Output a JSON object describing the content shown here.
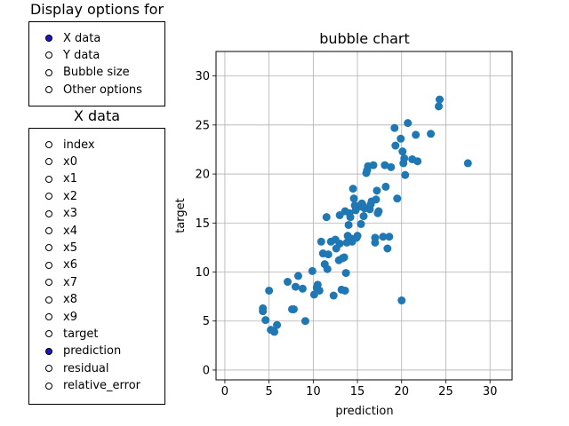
{
  "panels": {
    "display_title": "Display options for",
    "display_options": [
      {
        "label": "X data",
        "selected": true
      },
      {
        "label": "Y data",
        "selected": false
      },
      {
        "label": "Bubble size",
        "selected": false
      },
      {
        "label": "Other options",
        "selected": false
      }
    ],
    "xdata_title": "X data",
    "xdata_options": [
      {
        "label": "index",
        "selected": false
      },
      {
        "label": "x0",
        "selected": false
      },
      {
        "label": "x1",
        "selected": false
      },
      {
        "label": "x2",
        "selected": false
      },
      {
        "label": "x3",
        "selected": false
      },
      {
        "label": "x4",
        "selected": false
      },
      {
        "label": "x5",
        "selected": false
      },
      {
        "label": "x6",
        "selected": false
      },
      {
        "label": "x7",
        "selected": false
      },
      {
        "label": "x8",
        "selected": false
      },
      {
        "label": "x9",
        "selected": false
      },
      {
        "label": "target",
        "selected": false
      },
      {
        "label": "prediction",
        "selected": true
      },
      {
        "label": "residual",
        "selected": false
      },
      {
        "label": "relative_error",
        "selected": false
      }
    ],
    "selected_color": "#1a17c8"
  },
  "chart_data": {
    "type": "scatter",
    "title": "bubble chart",
    "xlabel": "prediction",
    "ylabel": "target",
    "xlim": [
      -1,
      32.5
    ],
    "ylim": [
      -1,
      32.5
    ],
    "xticks": [
      0,
      5,
      10,
      15,
      20,
      25,
      30
    ],
    "yticks": [
      0,
      5,
      10,
      15,
      20,
      25,
      30
    ],
    "grid": true,
    "color": "#1f77b4",
    "points": [
      [
        4.3,
        6.3
      ],
      [
        4.3,
        6.0
      ],
      [
        4.6,
        5.1
      ],
      [
        5.0,
        8.1
      ],
      [
        5.2,
        4.1
      ],
      [
        5.6,
        3.9
      ],
      [
        5.9,
        4.6
      ],
      [
        7.1,
        9.0
      ],
      [
        7.6,
        6.2
      ],
      [
        7.8,
        6.2
      ],
      [
        8.0,
        8.5
      ],
      [
        8.3,
        9.6
      ],
      [
        8.8,
        8.3
      ],
      [
        9.1,
        5.0
      ],
      [
        9.9,
        10.1
      ],
      [
        10.1,
        7.7
      ],
      [
        10.4,
        8.4
      ],
      [
        10.5,
        8.7
      ],
      [
        10.7,
        8.1
      ],
      [
        10.9,
        13.1
      ],
      [
        11.1,
        11.9
      ],
      [
        11.3,
        10.8
      ],
      [
        11.5,
        15.6
      ],
      [
        11.6,
        10.3
      ],
      [
        11.7,
        11.8
      ],
      [
        12.0,
        13.1
      ],
      [
        12.3,
        7.6
      ],
      [
        12.5,
        13.3
      ],
      [
        12.6,
        12.4
      ],
      [
        12.9,
        11.2
      ],
      [
        13.0,
        15.8
      ],
      [
        13.0,
        12.9
      ],
      [
        13.2,
        8.2
      ],
      [
        13.3,
        11.4
      ],
      [
        13.5,
        11.5
      ],
      [
        13.6,
        8.1
      ],
      [
        13.6,
        16.2
      ],
      [
        13.7,
        9.9
      ],
      [
        13.8,
        13.0
      ],
      [
        13.9,
        13.7
      ],
      [
        14.0,
        14.8
      ],
      [
        14.1,
        16.0
      ],
      [
        14.2,
        15.6
      ],
      [
        14.3,
        13.4
      ],
      [
        14.4,
        13.1
      ],
      [
        14.5,
        18.5
      ],
      [
        14.6,
        17.5
      ],
      [
        14.7,
        16.8
      ],
      [
        14.8,
        16.3
      ],
      [
        14.9,
        13.5
      ],
      [
        15.0,
        13.7
      ],
      [
        15.3,
        16.7
      ],
      [
        15.4,
        14.9
      ],
      [
        15.5,
        17.0
      ],
      [
        15.6,
        16.8
      ],
      [
        15.7,
        15.7
      ],
      [
        15.8,
        16.5
      ],
      [
        16.0,
        20.1
      ],
      [
        16.1,
        20.4
      ],
      [
        16.2,
        20.8
      ],
      [
        16.4,
        16.4
      ],
      [
        16.5,
        16.9
      ],
      [
        16.6,
        17.2
      ],
      [
        16.8,
        20.9
      ],
      [
        17.0,
        13.5
      ],
      [
        17.0,
        13.0
      ],
      [
        17.1,
        17.4
      ],
      [
        17.2,
        18.3
      ],
      [
        17.3,
        16.0
      ],
      [
        17.4,
        16.2
      ],
      [
        17.9,
        13.6
      ],
      [
        18.1,
        20.9
      ],
      [
        18.2,
        18.7
      ],
      [
        18.4,
        12.4
      ],
      [
        18.6,
        13.6
      ],
      [
        18.8,
        20.7
      ],
      [
        19.2,
        24.7
      ],
      [
        19.3,
        22.9
      ],
      [
        19.5,
        17.5
      ],
      [
        19.9,
        23.6
      ],
      [
        20.0,
        7.1
      ],
      [
        20.1,
        22.3
      ],
      [
        20.2,
        21.1
      ],
      [
        20.3,
        21.6
      ],
      [
        20.4,
        19.9
      ],
      [
        20.7,
        25.2
      ],
      [
        21.2,
        21.5
      ],
      [
        21.6,
        24.0
      ],
      [
        21.8,
        21.3
      ],
      [
        23.3,
        24.1
      ],
      [
        24.2,
        26.9
      ],
      [
        24.3,
        27.6
      ],
      [
        27.5,
        21.1
      ]
    ]
  }
}
